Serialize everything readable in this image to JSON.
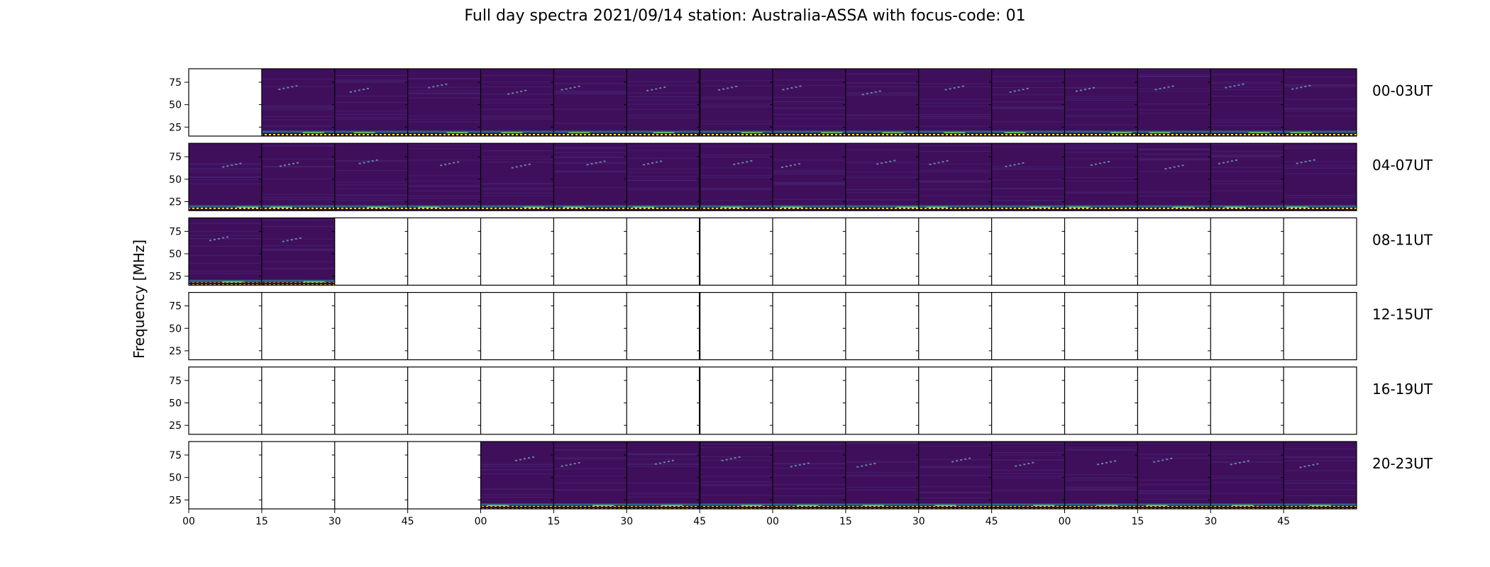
{
  "chart_data": {
    "type": "heatmap",
    "title": "Full day spectra 2021/09/14 station: Australia-ASSA with focus-code: 01",
    "xlabel": "",
    "ylabel": "Frequency [MHz]",
    "y_ticks": [
      25,
      50,
      75
    ],
    "ylim": [
      15,
      90
    ],
    "x_tick_labels": [
      "00",
      "15",
      "30",
      "45",
      "00",
      "15",
      "30",
      "45",
      "00",
      "15",
      "30",
      "45",
      "00",
      "15",
      "30",
      "45"
    ],
    "columns_per_row": 16,
    "colormap": [
      "#440154",
      "#3b528b",
      "#21918c",
      "#5ec962",
      "#fde725"
    ],
    "rows": [
      {
        "label": "00-03UT",
        "filled": [
          false,
          true,
          true,
          true,
          true,
          true,
          true,
          true,
          true,
          true,
          true,
          true,
          true,
          true,
          true,
          true
        ]
      },
      {
        "label": "04-07UT",
        "filled": [
          true,
          true,
          true,
          true,
          true,
          true,
          true,
          true,
          true,
          true,
          true,
          true,
          true,
          true,
          true,
          true
        ]
      },
      {
        "label": "08-11UT",
        "filled": [
          true,
          true,
          false,
          false,
          false,
          false,
          false,
          false,
          false,
          false,
          false,
          false,
          false,
          false,
          false,
          false
        ]
      },
      {
        "label": "12-15UT",
        "filled": [
          false,
          false,
          false,
          false,
          false,
          false,
          false,
          false,
          false,
          false,
          false,
          false,
          false,
          false,
          false,
          false
        ]
      },
      {
        "label": "16-19UT",
        "filled": [
          false,
          false,
          false,
          false,
          false,
          false,
          false,
          false,
          false,
          false,
          false,
          false,
          false,
          false,
          false,
          false
        ]
      },
      {
        "label": "20-23UT",
        "filled": [
          false,
          false,
          false,
          false,
          true,
          true,
          true,
          true,
          true,
          true,
          true,
          true,
          true,
          true,
          true,
          true
        ]
      }
    ]
  }
}
